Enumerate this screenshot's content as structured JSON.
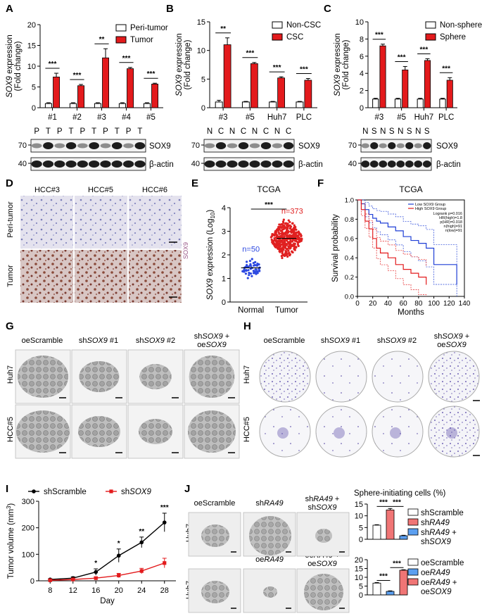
{
  "panels": {
    "A": "A",
    "B": "B",
    "C": "C",
    "D": "D",
    "E": "E",
    "F": "F",
    "G": "G",
    "H": "H",
    "I": "I",
    "J": "J"
  },
  "colors": {
    "red": "#e31a1c",
    "blue": "#1f3fd6",
    "dot_blue": "#2c48e0",
    "dot_red": "#e02020",
    "light_red": "#f07575",
    "light_blue": "#5b9ff0",
    "stain": "#4b3aa0"
  },
  "common": {
    "ylabel_line1": "SOX9 expression",
    "ylabel_line2": "(Fold change)",
    "sox9": "SOX9",
    "actin": "β-actin",
    "sig3": "***",
    "sig2": "**",
    "sig1": "*",
    "mw70": "70",
    "mw40": "40"
  },
  "chart_data": [
    {
      "id": "A",
      "type": "bar",
      "categories": [
        "#1",
        "#2",
        "#3",
        "#4",
        "#5"
      ],
      "series": [
        {
          "name": "Peri-tumor",
          "values": [
            1,
            1,
            1,
            1,
            1
          ]
        },
        {
          "name": "Tumor",
          "values": [
            7.4,
            5.3,
            12,
            9.4,
            5.7
          ]
        }
      ],
      "errors": [
        [
          0.2,
          0.2,
          0.2,
          0.2,
          0.2
        ],
        [
          0.9,
          0.3,
          2.2,
          0.3,
          0.2
        ]
      ],
      "significance": [
        "***",
        "***",
        "**",
        "***",
        "***"
      ],
      "ylim": [
        0,
        20
      ],
      "yticks": [
        "0",
        "5",
        "10",
        "15",
        "20"
      ],
      "blot_lanes": [
        "P",
        "T",
        "P",
        "T",
        "P",
        "T",
        "P",
        "T",
        "P",
        "T"
      ]
    },
    {
      "id": "B",
      "type": "bar",
      "categories": [
        "#3",
        "#5",
        "Huh7",
        "PLC"
      ],
      "series": [
        {
          "name": "Non-CSC",
          "values": [
            1,
            1,
            1,
            1
          ]
        },
        {
          "name": "CSC",
          "values": [
            11,
            7.7,
            5.2,
            4.8
          ]
        }
      ],
      "errors": [
        [
          0.3,
          0.1,
          0.1,
          0.1
        ],
        [
          1.2,
          0.2,
          0.2,
          0.3
        ]
      ],
      "significance": [
        "**",
        "***",
        "***",
        "***"
      ],
      "ylim": [
        0,
        15
      ],
      "yticks": [
        "0",
        "5",
        "10",
        "15"
      ],
      "blot_lanes": [
        "N",
        "C",
        "N",
        "C",
        "N",
        "C",
        "N",
        "C"
      ]
    },
    {
      "id": "C",
      "type": "bar",
      "categories": [
        "#3",
        "#5",
        "Huh7",
        "PLC"
      ],
      "series": [
        {
          "name": "Non-sphere",
          "values": [
            1,
            1,
            1,
            1
          ]
        },
        {
          "name": "Sphere",
          "values": [
            7.2,
            4.4,
            5.5,
            3.2
          ]
        }
      ],
      "errors": [
        [
          0.1,
          0.1,
          0.1,
          0.1
        ],
        [
          0.2,
          0.4,
          0.2,
          0.3
        ]
      ],
      "significance": [
        "***",
        "***",
        "***",
        "***"
      ],
      "ylim": [
        0,
        10
      ],
      "yticks": [
        "0",
        "2",
        "4",
        "6",
        "8",
        "10"
      ],
      "blot_lanes": [
        "N",
        "S",
        "N",
        "S",
        "N",
        "S",
        "N",
        "S"
      ]
    },
    {
      "id": "E",
      "type": "scatter",
      "title": "TCGA",
      "categories": [
        "Normal",
        "Tumor"
      ],
      "ylabel": "SOX9 expression (Log",
      "ylabel_sub": "10",
      "ylabel_end": ")",
      "n_labels": [
        "n=50",
        "n=373"
      ],
      "n_counts": [
        50,
        373
      ],
      "means": [
        1.45,
        2.7
      ],
      "spreads": [
        0.3,
        0.55
      ],
      "significance": "***",
      "ylim": [
        0,
        4
      ],
      "yticks": [
        "0",
        "1",
        "2",
        "3",
        "4"
      ]
    },
    {
      "id": "F",
      "type": "line",
      "title": "TCGA",
      "xlabel": "Months",
      "ylabel": "Survival probability",
      "xlim": [
        0,
        140
      ],
      "xticks": [
        "0",
        "20",
        "40",
        "60",
        "80",
        "100",
        "120",
        "140"
      ],
      "ylim": [
        0,
        1
      ],
      "yticks": [
        "0.0",
        "0.2",
        "0.4",
        "0.6",
        "0.8",
        "1.0"
      ],
      "legend": [
        "Low SOX9 Group",
        "High SOX9 Group"
      ],
      "stats": [
        "Logrank p=0.016",
        "HR(high)=1.8",
        "p(HR)=0.018",
        "n(high)=91",
        "n(low)=91"
      ],
      "series": [
        {
          "name": "Low SOX9 Group",
          "x": [
            0,
            5,
            10,
            15,
            20,
            25,
            30,
            40,
            50,
            60,
            70,
            80,
            90,
            100,
            130
          ],
          "y": [
            1,
            0.96,
            0.9,
            0.85,
            0.81,
            0.78,
            0.76,
            0.72,
            0.68,
            0.62,
            0.58,
            0.55,
            0.5,
            0.33,
            0.12
          ]
        },
        {
          "name": "High SOX9 Group",
          "x": [
            0,
            5,
            10,
            15,
            20,
            25,
            30,
            40,
            50,
            60,
            70,
            80,
            90
          ],
          "y": [
            1,
            0.9,
            0.78,
            0.7,
            0.6,
            0.5,
            0.45,
            0.4,
            0.33,
            0.28,
            0.24,
            0.2,
            0.12
          ]
        }
      ]
    },
    {
      "id": "I",
      "type": "line",
      "xlabel": "Day",
      "ylabel": "Tumor volume (mm",
      "ylabel_sup": "3",
      "ylabel_end": ")",
      "x": [
        8,
        12,
        16,
        20,
        24,
        28
      ],
      "xticks": [
        "8",
        "12",
        "16",
        "20",
        "24",
        "28"
      ],
      "ylim": [
        0,
        300
      ],
      "yticks": [
        "0",
        "100",
        "200",
        "300"
      ],
      "series": [
        {
          "name": "shScramble",
          "values": [
            5,
            10,
            33,
            95,
            145,
            220
          ],
          "errors": [
            3,
            5,
            12,
            25,
            20,
            35
          ]
        },
        {
          "name": "shSOX9",
          "values": [
            2,
            5,
            10,
            20,
            37,
            67
          ],
          "errors": [
            2,
            3,
            4,
            8,
            10,
            18
          ]
        }
      ],
      "significance": [
        "*",
        "*",
        "**",
        "***"
      ]
    },
    {
      "id": "J1",
      "type": "bar",
      "title": "Sphere-initiating cells (%)",
      "categories": [
        "shScramble",
        "shRA49",
        "shRA49 + shSOX9"
      ],
      "values": [
        6,
        12.5,
        1.5
      ],
      "errors": [
        0.2,
        0.6,
        0.2
      ],
      "ylim": [
        0,
        15
      ],
      "yticks": [
        "0",
        "5",
        "10",
        "15"
      ],
      "significance": [
        "***",
        "***"
      ]
    },
    {
      "id": "J2",
      "type": "bar",
      "categories": [
        "oeScramble",
        "oeRA49",
        "oeRA49 + oeSOX9"
      ],
      "values": [
        6.7,
        2,
        14
      ],
      "errors": [
        0.3,
        0.3,
        0.3
      ],
      "ylim": [
        0,
        20
      ],
      "yticks": [
        "0",
        "5",
        "10",
        "15",
        "20"
      ],
      "significance": [
        "***",
        "***"
      ]
    }
  ],
  "panel_d": {
    "cols": [
      "HCC#3",
      "HCC#5",
      "HCC#6"
    ],
    "rows": [
      "Peri-tumor",
      "Tumor"
    ],
    "stain_label": "SOX9"
  },
  "panel_g": {
    "rows": [
      "Huh7",
      "HCC#5"
    ]
  },
  "panel_h": {
    "rows": [
      "Huh7",
      "HCC#5"
    ]
  },
  "panel_j": {
    "row_label": "Huh7"
  }
}
